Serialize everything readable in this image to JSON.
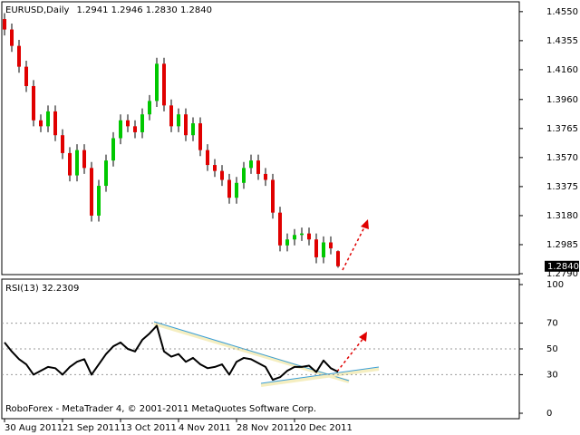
{
  "chart_data": [
    {
      "type": "candlestick",
      "title": "EURUSD,Daily",
      "ohlc_label": "1.2941 1.2946 1.2830 1.2840",
      "last_price_label": "1.2840",
      "up_color": "#00c800",
      "down_color": "#e00000",
      "open": [
        1.45,
        1.443,
        1.432,
        1.418,
        1.405,
        1.382,
        1.378,
        1.388,
        1.372,
        1.36,
        1.345,
        1.362,
        1.35,
        1.318,
        1.338,
        1.355,
        1.37,
        1.382,
        1.378,
        1.374,
        1.386,
        1.395,
        1.42,
        1.392,
        1.378,
        1.386,
        1.372,
        1.38,
        1.362,
        1.352,
        1.348,
        1.342,
        1.33,
        1.34,
        1.35,
        1.355,
        1.346,
        1.342,
        1.32,
        1.298,
        1.302,
        1.305,
        1.306,
        1.302,
        1.29,
        1.3,
        1.2941
      ],
      "high": [
        1.454,
        1.447,
        1.436,
        1.422,
        1.409,
        1.386,
        1.392,
        1.392,
        1.376,
        1.364,
        1.366,
        1.366,
        1.354,
        1.342,
        1.359,
        1.374,
        1.386,
        1.386,
        1.382,
        1.39,
        1.399,
        1.424,
        1.424,
        1.396,
        1.39,
        1.39,
        1.384,
        1.384,
        1.366,
        1.356,
        1.352,
        1.346,
        1.344,
        1.354,
        1.359,
        1.359,
        1.35,
        1.346,
        1.324,
        1.306,
        1.309,
        1.31,
        1.31,
        1.306,
        1.304,
        1.304,
        1.2946
      ],
      "low": [
        1.439,
        1.428,
        1.414,
        1.401,
        1.378,
        1.374,
        1.374,
        1.368,
        1.356,
        1.341,
        1.341,
        1.346,
        1.314,
        1.314,
        1.334,
        1.351,
        1.366,
        1.374,
        1.37,
        1.37,
        1.382,
        1.391,
        1.388,
        1.374,
        1.374,
        1.368,
        1.368,
        1.358,
        1.348,
        1.344,
        1.338,
        1.326,
        1.326,
        1.336,
        1.346,
        1.342,
        1.338,
        1.316,
        1.294,
        1.294,
        1.298,
        1.301,
        1.298,
        1.286,
        1.286,
        1.292,
        1.283
      ],
      "close": [
        1.443,
        1.432,
        1.418,
        1.405,
        1.382,
        1.378,
        1.388,
        1.372,
        1.36,
        1.345,
        1.362,
        1.35,
        1.318,
        1.338,
        1.355,
        1.37,
        1.382,
        1.378,
        1.374,
        1.386,
        1.395,
        1.42,
        1.392,
        1.378,
        1.386,
        1.372,
        1.38,
        1.362,
        1.352,
        1.348,
        1.342,
        1.33,
        1.34,
        1.35,
        1.355,
        1.346,
        1.342,
        1.32,
        1.298,
        1.302,
        1.305,
        1.306,
        1.302,
        1.29,
        1.3,
        1.296,
        1.284
      ],
      "ylim": [
        1.279,
        1.4616
      ],
      "yticks": [
        {
          "value": 1.455,
          "label": "1.4550"
        },
        {
          "value": 1.4355,
          "label": "1.4355"
        },
        {
          "value": 1.416,
          "label": "1.4160"
        },
        {
          "value": 1.396,
          "label": "1.3960"
        },
        {
          "value": 1.3765,
          "label": "1.3765"
        },
        {
          "value": 1.357,
          "label": "1.3570"
        },
        {
          "value": 1.3375,
          "label": "1.3375"
        },
        {
          "value": 1.318,
          "label": "1.3180"
        },
        {
          "value": 1.2985,
          "label": "1.2985"
        },
        {
          "value": 1.279,
          "label": "1.2790"
        }
      ]
    },
    {
      "type": "line",
      "title": "RSI(13) 32.2309",
      "color": "#000000",
      "watermark": "RoboForex - MetaTrader 4, © 2001-2011 MetaQuotes Software Corp.",
      "categories": [
        "30 Aug 2011",
        null,
        null,
        null,
        null,
        null,
        null,
        null,
        "21 Sep 2011",
        null,
        null,
        null,
        null,
        null,
        null,
        null,
        "13 Oct 2011",
        null,
        null,
        null,
        null,
        null,
        null,
        null,
        "4 Nov 2011",
        null,
        null,
        null,
        null,
        null,
        null,
        null,
        "28 Nov 2011",
        null,
        null,
        null,
        null,
        null,
        null,
        null,
        "20 Dec 2011",
        null,
        null,
        null,
        null,
        null,
        null
      ],
      "values": [
        55,
        48,
        42,
        38,
        30,
        33,
        36,
        35,
        30,
        36,
        40,
        42,
        30,
        38,
        46,
        52,
        55,
        50,
        48,
        57,
        62,
        68,
        48,
        44,
        46,
        40,
        43,
        38,
        35,
        36,
        38,
        30,
        40,
        43,
        42,
        39,
        36,
        26,
        28,
        33,
        36,
        36,
        37,
        32,
        41,
        35,
        32.2309
      ],
      "ylim": [
        0,
        100
      ],
      "yticks": [
        0,
        30,
        50,
        70,
        100
      ],
      "grid": true
    }
  ]
}
